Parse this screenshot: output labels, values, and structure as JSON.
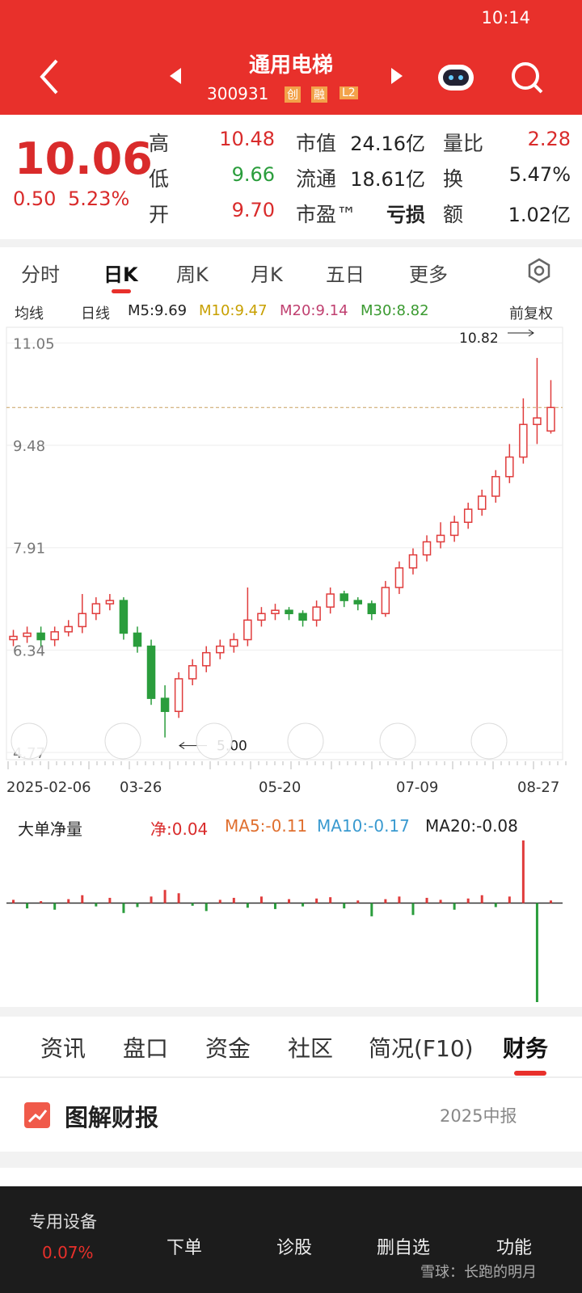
{
  "status": {
    "time": "10:14"
  },
  "header": {
    "name": "通用电梯",
    "code": "300931",
    "tags": [
      "创",
      "融",
      "L2"
    ]
  },
  "quote": {
    "price": 10.06,
    "change": "0.50",
    "pct": "5.23%",
    "stats": [
      [
        "高",
        "10.48"
      ],
      [
        "市值",
        "24.16亿"
      ],
      [
        "量比",
        "2.28"
      ],
      [
        "低",
        "9.66"
      ],
      [
        "流通",
        "18.61亿"
      ],
      [
        "换",
        "5.47%"
      ],
      [
        "开",
        "9.70"
      ],
      [
        "市盈™",
        "亏损"
      ],
      [
        "额",
        "1.02亿"
      ]
    ]
  },
  "tabs": [
    "分时",
    "日K",
    "周K",
    "月K",
    "五日",
    "更多"
  ],
  "legend": [
    "均线",
    "日线",
    "M5:9.69",
    "M10:9.47",
    "M20:9.14",
    "M30:8.82",
    "前复权"
  ],
  "chart_data": {
    "type": "candlestick",
    "ylim": [
      4.66,
      11.29
    ],
    "yticks": [
      11.05,
      9.48,
      7.91,
      6.34,
      4.77
    ],
    "x_labels": [
      "2025-02-06",
      "03-26",
      "05-20",
      "07-09",
      "08-27"
    ],
    "annotations": [
      "10.82",
      "5.00"
    ],
    "open": [
      6.5,
      6.55,
      6.6,
      6.5,
      6.62,
      6.7,
      6.9,
      7.05,
      7.1,
      6.6,
      6.4,
      5.6,
      5.4,
      5.9,
      6.1,
      6.3,
      6.4,
      6.5,
      6.8,
      6.9,
      6.95,
      6.9,
      6.8,
      7.0,
      7.2,
      7.1,
      7.05,
      6.9,
      7.3,
      7.6,
      7.8,
      8.0,
      8.1,
      8.3,
      8.5,
      8.7,
      9.0,
      9.3,
      9.8,
      9.7
    ],
    "high": [
      6.65,
      6.7,
      6.7,
      6.7,
      6.8,
      7.2,
      7.15,
      7.2,
      7.15,
      6.7,
      6.5,
      5.8,
      6.0,
      6.2,
      6.4,
      6.5,
      6.6,
      7.3,
      7.0,
      7.05,
      7.0,
      6.95,
      7.1,
      7.3,
      7.25,
      7.15,
      7.1,
      7.4,
      7.7,
      7.9,
      8.1,
      8.3,
      8.4,
      8.6,
      8.8,
      9.1,
      9.5,
      10.2,
      10.82,
      10.48
    ],
    "low": [
      6.4,
      6.45,
      6.4,
      6.4,
      6.55,
      6.6,
      6.8,
      6.95,
      6.5,
      6.3,
      5.5,
      5.0,
      5.3,
      5.8,
      6.0,
      6.2,
      6.3,
      6.4,
      6.7,
      6.8,
      6.8,
      6.7,
      6.7,
      6.9,
      7.0,
      6.95,
      6.8,
      6.85,
      7.2,
      7.5,
      7.7,
      7.9,
      8.0,
      8.2,
      8.4,
      8.6,
      8.9,
      9.2,
      9.5,
      9.66
    ],
    "close": [
      6.55,
      6.6,
      6.5,
      6.62,
      6.7,
      6.9,
      7.05,
      7.1,
      6.6,
      6.4,
      5.6,
      5.4,
      5.9,
      6.1,
      6.3,
      6.4,
      6.5,
      6.8,
      6.9,
      6.95,
      6.9,
      6.8,
      7.0,
      7.2,
      7.1,
      7.05,
      6.9,
      7.3,
      7.6,
      7.8,
      8.0,
      8.1,
      8.3,
      8.5,
      8.7,
      9.0,
      9.3,
      9.8,
      9.9,
      10.06
    ],
    "colors": {
      "up": "#e03c3c",
      "down": "#2a9d3c"
    }
  },
  "flow_data": {
    "type": "bar",
    "legend": [
      "大单净量",
      "净:0.04",
      "MA5:-0.11",
      "MA10:-0.17",
      "MA20:-0.08"
    ],
    "ylim": [
      -1.5,
      0.95
    ],
    "values": [
      0.05,
      -0.08,
      0.03,
      -0.1,
      0.06,
      0.12,
      -0.05,
      0.08,
      -0.15,
      -0.06,
      0.1,
      0.2,
      0.15,
      -0.04,
      -0.12,
      0.05,
      0.08,
      -0.07,
      0.1,
      -0.09,
      0.06,
      -0.05,
      0.07,
      0.09,
      -0.08,
      0.04,
      -0.2,
      0.06,
      0.1,
      -0.18,
      0.08,
      0.05,
      -0.1,
      0.07,
      0.12,
      -0.06,
      0.1,
      0.95,
      -1.5,
      0.04
    ]
  },
  "sections": [
    "资讯",
    "盘口",
    "资金",
    "社区",
    "简况(F10)",
    "财务"
  ],
  "report": {
    "title": "图解财报",
    "period": "2025中报"
  },
  "nav": {
    "sector": "专用设备",
    "sector_pct": "0.07%",
    "items": [
      "下单",
      "诊股",
      "删自选",
      "功能"
    ],
    "watermark": "雪球：长跑的明月"
  }
}
